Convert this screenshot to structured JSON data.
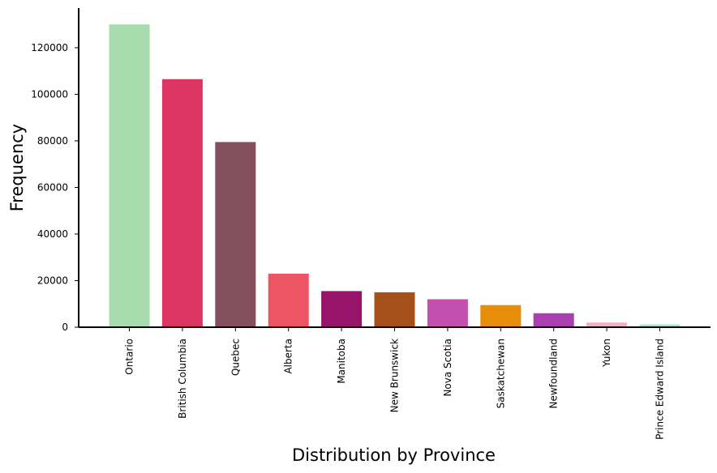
{
  "chart_data": {
    "type": "bar",
    "xlabel": "Distribution by Province",
    "ylabel": "Frequency",
    "ylim": [
      0,
      137000
    ],
    "yticks": [
      0,
      20000,
      40000,
      60000,
      80000,
      100000,
      120000
    ],
    "yticklabels": [
      "0",
      "20000",
      "40000",
      "60000",
      "80000",
      "100000",
      "120000"
    ],
    "grid": false,
    "categories": [
      "Ontario",
      "British Columbia",
      "Quebec",
      "Alberta",
      "Manitoba",
      "New Brunswick",
      "Nova Scotia",
      "Saskatchewan",
      "Newfoundland",
      "Yukon",
      "Prince Edward Island"
    ],
    "values": [
      130000,
      106500,
      79500,
      23000,
      15500,
      15000,
      12000,
      9500,
      6000,
      2000,
      1200
    ],
    "colors": [
      "#a8dbad",
      "#dc3564",
      "#85505e",
      "#ee5564",
      "#98136a",
      "#a54f1d",
      "#c450ad",
      "#e88d07",
      "#aa40ae",
      "#eeb0c8",
      "#a5e4d0"
    ]
  }
}
